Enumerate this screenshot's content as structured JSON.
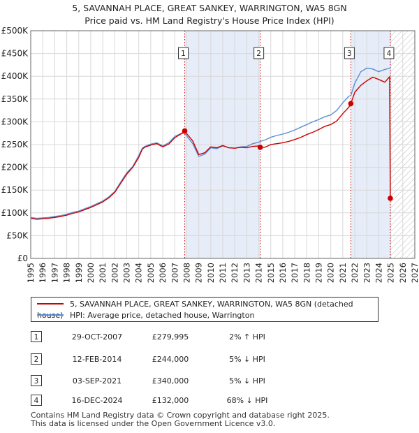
{
  "title_line1": "5, SAVANNAH PLACE, GREAT SANKEY, WARRINGTON, WA5 8GN",
  "title_line2": "Price paid vs. HM Land Registry's House Price Index (HPI)",
  "colors": {
    "red_series": "#cc0000",
    "blue_series": "#5b8fd4",
    "grid": "#d8d8d8",
    "shade": "#e6ecf8",
    "marker_line": "#cc0000"
  },
  "legend": {
    "red_label": "5, SAVANNAH PLACE, GREAT SANKEY, WARRINGTON, WA5 8GN (detached house)",
    "blue_label": "HPI: Average price, detached house, Warrington"
  },
  "transactions": [
    {
      "num": "1",
      "date": "29-OCT-2007",
      "price": "£279,995",
      "hpi": "2% ↑ HPI"
    },
    {
      "num": "2",
      "date": "12-FEB-2014",
      "price": "£244,000",
      "hpi": "5% ↓ HPI"
    },
    {
      "num": "3",
      "date": "03-SEP-2021",
      "price": "£340,000",
      "hpi": "5% ↓ HPI"
    },
    {
      "num": "4",
      "date": "16-DEC-2024",
      "price": "£132,000",
      "hpi": "68% ↓ HPI"
    }
  ],
  "footer": {
    "line1": "Contains HM Land Registry data © Crown copyright and database right 2025.",
    "line2": "This data is licensed under the Open Government Licence v3.0."
  },
  "chart_data": {
    "type": "line",
    "title": "5, SAVANNAH PLACE, GREAT SANKEY, WARRINGTON, WA5 8GN — Price paid vs. HM Land Registry's House Price Index (HPI)",
    "xlabel": "",
    "ylabel": "",
    "xlim": [
      1995,
      2027
    ],
    "ylim": [
      0,
      500000
    ],
    "grid": true,
    "legend_position": "below",
    "x_ticks": [
      1995,
      1996,
      1997,
      1998,
      1999,
      2000,
      2001,
      2002,
      2003,
      2004,
      2005,
      2006,
      2007,
      2008,
      2009,
      2010,
      2011,
      2012,
      2013,
      2014,
      2015,
      2016,
      2017,
      2018,
      2019,
      2020,
      2021,
      2022,
      2023,
      2024,
      2025,
      2026,
      2027
    ],
    "y_ticks": [
      {
        "value": 0,
        "label": "£0"
      },
      {
        "value": 50000,
        "label": "£50K"
      },
      {
        "value": 100000,
        "label": "£100K"
      },
      {
        "value": 150000,
        "label": "£150K"
      },
      {
        "value": 200000,
        "label": "£200K"
      },
      {
        "value": 250000,
        "label": "£250K"
      },
      {
        "value": 300000,
        "label": "£300K"
      },
      {
        "value": 350000,
        "label": "£350K"
      },
      {
        "value": 400000,
        "label": "£400K"
      },
      {
        "value": 450000,
        "label": "£450K"
      },
      {
        "value": 500000,
        "label": "£500K"
      }
    ],
    "shaded_ranges": [
      [
        2007.83,
        2014.12
      ],
      [
        2021.67,
        2024.96
      ]
    ],
    "hatched_range": [
      2025.0,
      2027
    ],
    "series": [
      {
        "name": "5, SAVANNAH PLACE, GREAT SANKEY, WARRINGTON, WA5 8GN (detached house)",
        "color": "red",
        "x": [
          1995.0,
          1995.5,
          1996.0,
          1996.5,
          1997.0,
          1997.5,
          1998.0,
          1998.5,
          1999.0,
          1999.5,
          2000.0,
          2000.5,
          2001.0,
          2001.5,
          2002.0,
          2002.5,
          2003.0,
          2003.5,
          2004.0,
          2004.3,
          2004.5,
          2005.0,
          2005.5,
          2006.0,
          2006.5,
          2007.0,
          2007.5,
          2007.83,
          2008.0,
          2008.5,
          2009.0,
          2009.5,
          2010.0,
          2010.5,
          2011.0,
          2011.5,
          2012.0,
          2012.5,
          2013.0,
          2013.5,
          2014.0,
          2014.12,
          2014.5,
          2015.0,
          2015.5,
          2016.0,
          2016.5,
          2017.0,
          2017.5,
          2018.0,
          2018.5,
          2019.0,
          2019.5,
          2020.0,
          2020.5,
          2021.0,
          2021.5,
          2021.67,
          2022.0,
          2022.5,
          2023.0,
          2023.5,
          2024.0,
          2024.5,
          2024.9,
          2024.96
        ],
        "y": [
          88000,
          86000,
          87000,
          88000,
          90000,
          92000,
          95000,
          99000,
          102000,
          107000,
          112000,
          118000,
          124000,
          133000,
          145000,
          165000,
          185000,
          200000,
          222000,
          240000,
          244000,
          249000,
          252000,
          245000,
          251000,
          265000,
          273000,
          279995,
          274000,
          258000,
          228000,
          232000,
          245000,
          243000,
          248000,
          243000,
          242000,
          244000,
          243000,
          246000,
          247000,
          244000,
          244000,
          250000,
          252000,
          254000,
          257000,
          261000,
          266000,
          272000,
          277000,
          283000,
          290000,
          294000,
          302000,
          318000,
          332000,
          340000,
          365000,
          380000,
          390000,
          398000,
          393000,
          387000,
          399000,
          132000
        ]
      },
      {
        "name": "HPI: Average price, detached house, Warrington",
        "color": "blue",
        "x": [
          1995.0,
          1995.5,
          1996.0,
          1996.5,
          1997.0,
          1997.5,
          1998.0,
          1998.5,
          1999.0,
          1999.5,
          2000.0,
          2000.5,
          2001.0,
          2001.5,
          2002.0,
          2002.5,
          2003.0,
          2003.5,
          2004.0,
          2004.3,
          2004.5,
          2005.0,
          2005.5,
          2006.0,
          2006.5,
          2007.0,
          2007.5,
          2007.83,
          2008.0,
          2008.5,
          2009.0,
          2009.5,
          2010.0,
          2010.5,
          2011.0,
          2011.5,
          2012.0,
          2012.5,
          2013.0,
          2013.5,
          2014.0,
          2014.12,
          2014.5,
          2015.0,
          2015.5,
          2016.0,
          2016.5,
          2017.0,
          2017.5,
          2018.0,
          2018.5,
          2019.0,
          2019.5,
          2020.0,
          2020.5,
          2021.0,
          2021.5,
          2021.67,
          2022.0,
          2022.5,
          2023.0,
          2023.5,
          2024.0,
          2024.5,
          2024.96
        ],
        "y": [
          90000,
          88000,
          89000,
          90000,
          92000,
          94000,
          97000,
          101000,
          104000,
          109000,
          114000,
          120000,
          126000,
          135000,
          147000,
          168000,
          188000,
          202000,
          226000,
          242000,
          246000,
          251000,
          254000,
          247000,
          254000,
          268000,
          274000,
          275000,
          269000,
          252000,
          224000,
          229000,
          243000,
          241000,
          247000,
          243000,
          242000,
          245000,
          246000,
          252000,
          255000,
          257000,
          260000,
          266000,
          270000,
          273000,
          277000,
          282000,
          288000,
          294000,
          300000,
          305000,
          311000,
          315000,
          325000,
          342000,
          356000,
          358000,
          385000,
          410000,
          418000,
          416000,
          410000,
          415000,
          418000
        ]
      }
    ],
    "markers": [
      {
        "label": "1",
        "x": 2007.83,
        "y": 279995
      },
      {
        "label": "2",
        "x": 2014.12,
        "y": 244000
      },
      {
        "label": "3",
        "x": 2021.67,
        "y": 340000
      },
      {
        "label": "4",
        "x": 2024.96,
        "y": 132000
      }
    ]
  }
}
